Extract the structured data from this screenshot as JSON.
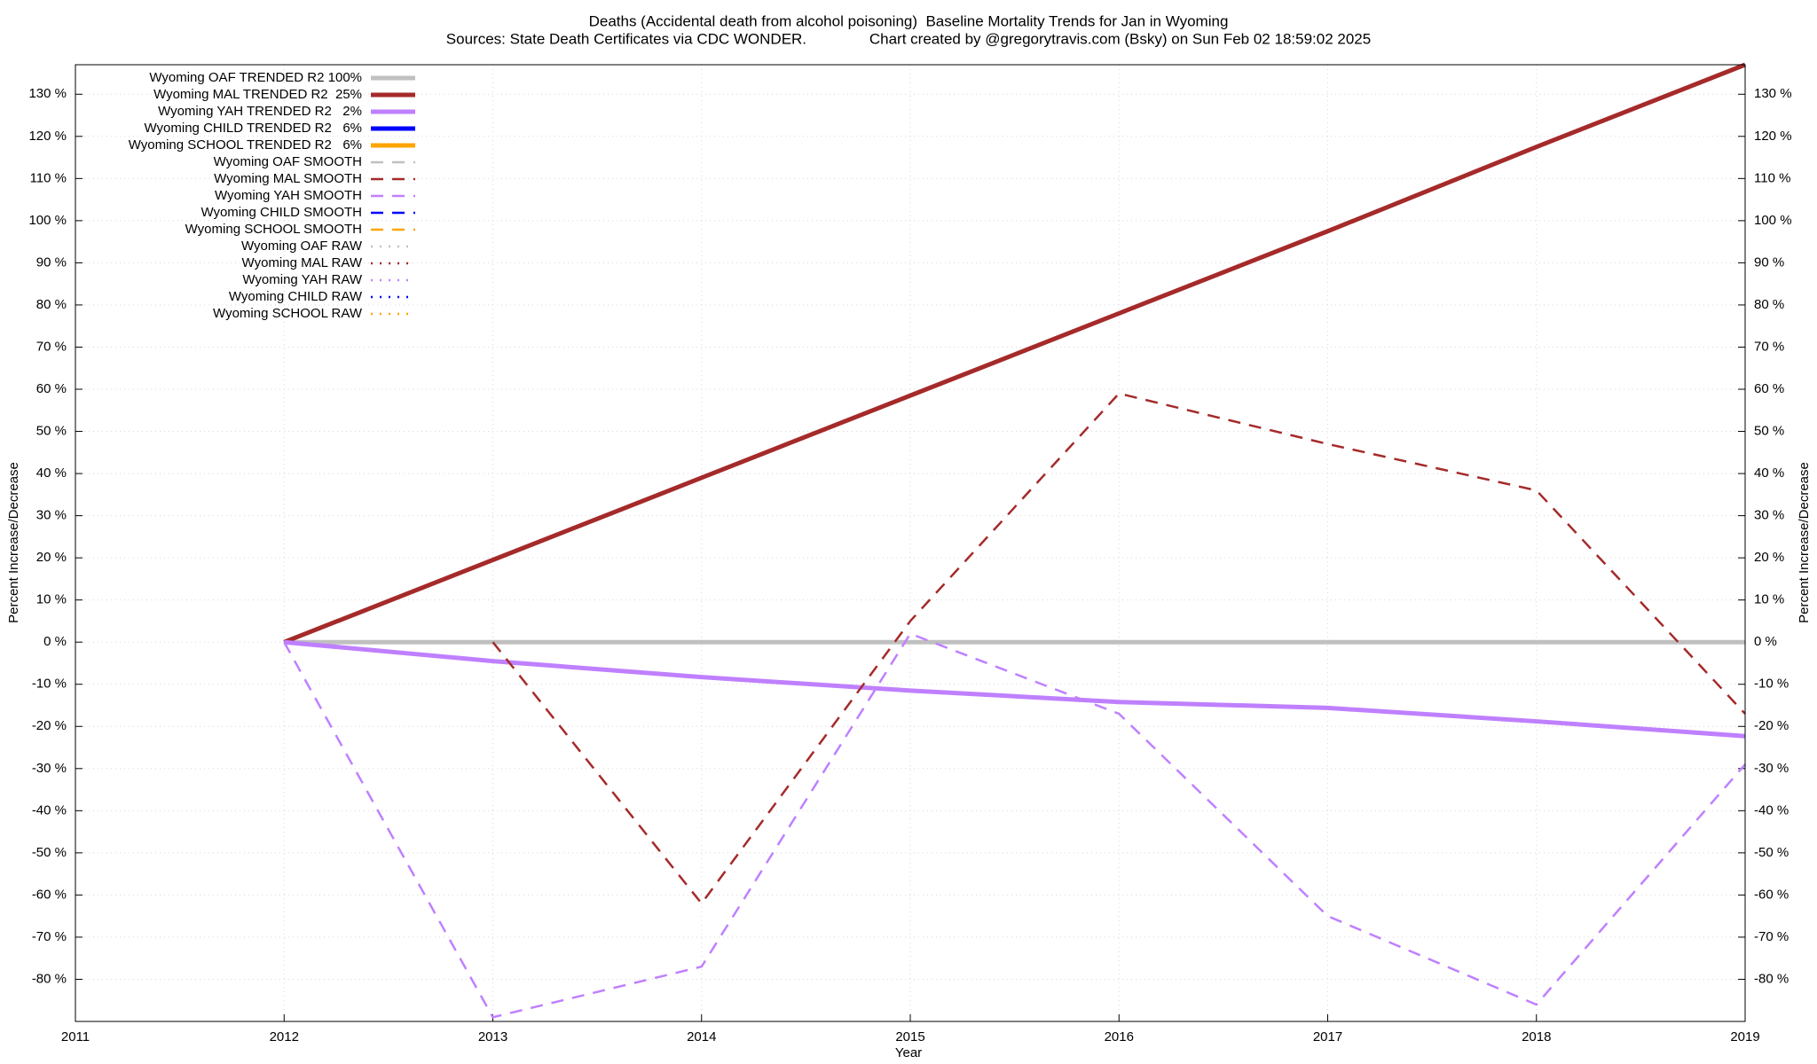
{
  "chart_data": {
    "type": "line",
    "title": "Deaths (Accidental death from alcohol poisoning)  Baseline Mortality Trends for Jan in Wyoming",
    "subtitle": "Sources: State Death Certificates via CDC WONDER.               Chart created by @gregorytravis.com (Bsky) on Sun Feb 02 18:59:02 2025",
    "x_label": "Year",
    "y_label": "Percent Increase/Decrease",
    "y2_label": "Percent Increase/Decrease",
    "x": [
      2012,
      2013,
      2014,
      2015,
      2016,
      2017,
      2018,
      2019
    ],
    "xlim": [
      2011,
      2019
    ],
    "xticks": [
      2011,
      2012,
      2013,
      2014,
      2015,
      2016,
      2017,
      2018,
      2019
    ],
    "ylim": [
      -90,
      137
    ],
    "yticks": [
      {
        "value": -80,
        "label": "-80 %"
      },
      {
        "value": -70,
        "label": "-70 %"
      },
      {
        "value": -60,
        "label": "-60 %"
      },
      {
        "value": -50,
        "label": "-50 %"
      },
      {
        "value": -40,
        "label": "-40 %"
      },
      {
        "value": -30,
        "label": "-30 %"
      },
      {
        "value": -20,
        "label": "-20 %"
      },
      {
        "value": -10,
        "label": "-10 %"
      },
      {
        "value": 0,
        "label": "0 %"
      },
      {
        "value": 10,
        "label": "10 %"
      },
      {
        "value": 20,
        "label": "20 %"
      },
      {
        "value": 30,
        "label": "30 %"
      },
      {
        "value": 40,
        "label": "40 %"
      },
      {
        "value": 50,
        "label": "50 %"
      },
      {
        "value": 60,
        "label": "60 %"
      },
      {
        "value": 70,
        "label": "70 %"
      },
      {
        "value": 80,
        "label": "80 %"
      },
      {
        "value": 90,
        "label": "90 %"
      },
      {
        "value": 100,
        "label": "100 %"
      },
      {
        "value": 110,
        "label": "110 %"
      },
      {
        "value": 120,
        "label": "120 %"
      },
      {
        "value": 130,
        "label": "130 %"
      }
    ],
    "grid": true,
    "legend": "top-left",
    "series": [
      {
        "name": "Wyoming OAF TRENDED R2 100%",
        "color": "#c0c0c0",
        "style": "solid",
        "values": [
          0,
          0,
          0,
          0,
          0,
          0,
          0,
          0
        ]
      },
      {
        "name": "Wyoming MAL TRENDED R2  25%",
        "color": "#a52a2a",
        "style": "solid",
        "values": [
          0,
          19.5,
          39,
          58.5,
          78,
          97.5,
          117.5,
          137
        ]
      },
      {
        "name": "Wyoming YAH TRENDED R2   2%",
        "color": "#bf80ff",
        "style": "solid",
        "values": [
          0,
          -4.5,
          -8.3,
          -11.5,
          -14.2,
          -15.6,
          -18.8,
          -22.3
        ]
      },
      {
        "name": "Wyoming CHILD TRENDED R2   6%",
        "color": "#0000ff",
        "style": "solid",
        "values": [
          null,
          null,
          null,
          null,
          null,
          null,
          null,
          null
        ]
      },
      {
        "name": "Wyoming SCHOOL TRENDED R2   6%",
        "color": "#ffa500",
        "style": "solid",
        "values": [
          null,
          null,
          null,
          null,
          null,
          null,
          null,
          null
        ]
      },
      {
        "name": "Wyoming OAF SMOOTH",
        "color": "#c0c0c0",
        "style": "dashed",
        "values": [
          null,
          null,
          null,
          null,
          null,
          null,
          null,
          null
        ]
      },
      {
        "name": "Wyoming MAL SMOOTH",
        "color": "#a52a2a",
        "style": "dashed",
        "values": [
          null,
          0,
          -62,
          5,
          59,
          47,
          36,
          -17
        ]
      },
      {
        "name": "Wyoming YAH SMOOTH",
        "color": "#bf80ff",
        "style": "dashed",
        "values": [
          0,
          -89,
          -77,
          2,
          -17,
          -65,
          -86,
          -29
        ]
      },
      {
        "name": "Wyoming CHILD SMOOTH",
        "color": "#0000ff",
        "style": "dashed",
        "values": [
          null,
          null,
          null,
          null,
          null,
          null,
          null,
          null
        ]
      },
      {
        "name": "Wyoming SCHOOL SMOOTH",
        "color": "#ffa500",
        "style": "dashed",
        "values": [
          null,
          null,
          null,
          null,
          null,
          null,
          null,
          null
        ]
      },
      {
        "name": "Wyoming OAF RAW",
        "color": "#c0c0c0",
        "style": "dotted",
        "values": [
          null,
          null,
          null,
          null,
          null,
          null,
          null,
          null
        ]
      },
      {
        "name": "Wyoming MAL RAW",
        "color": "#a52a2a",
        "style": "dotted",
        "values": [
          null,
          null,
          null,
          null,
          null,
          null,
          null,
          null
        ]
      },
      {
        "name": "Wyoming YAH RAW",
        "color": "#bf80ff",
        "style": "dotted",
        "values": [
          null,
          null,
          null,
          null,
          null,
          null,
          null,
          null
        ]
      },
      {
        "name": "Wyoming CHILD RAW",
        "color": "#0000ff",
        "style": "dotted",
        "values": [
          null,
          null,
          null,
          null,
          null,
          null,
          null,
          null
        ]
      },
      {
        "name": "Wyoming SCHOOL RAW",
        "color": "#ffa500",
        "style": "dotted",
        "values": [
          null,
          null,
          null,
          null,
          null,
          null,
          null,
          null
        ]
      }
    ]
  }
}
